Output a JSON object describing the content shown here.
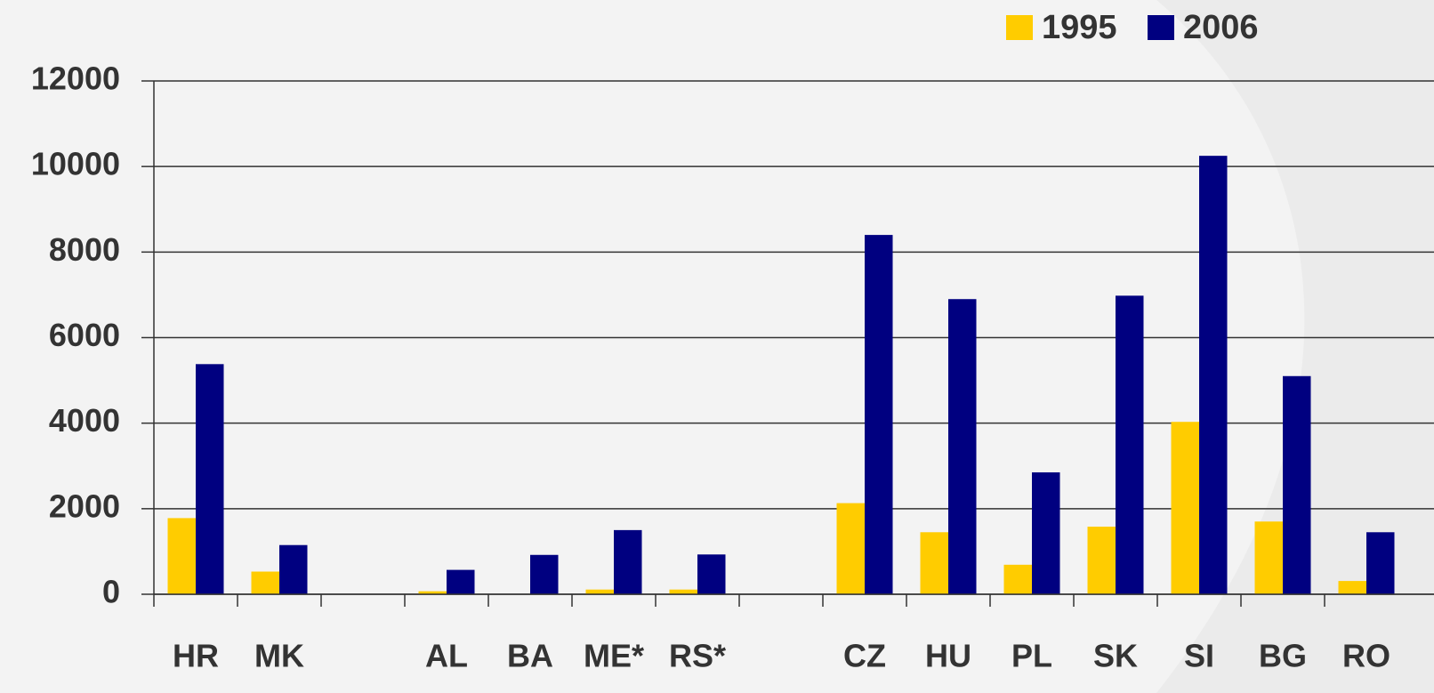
{
  "chart_data": {
    "type": "bar",
    "categories": [
      "HR",
      "MK",
      null,
      "AL",
      "BA",
      "ME*",
      "RS*",
      null,
      "CZ",
      "HU",
      "PL",
      "SK",
      "SI",
      "BG",
      "RO"
    ],
    "series": [
      {
        "name": "1995",
        "color": "#ffcc00",
        "values": [
          1780,
          530,
          null,
          70,
          0,
          110,
          110,
          null,
          2130,
          1450,
          690,
          1580,
          4030,
          1700,
          310
        ]
      },
      {
        "name": "2006",
        "color": "#000080",
        "values": [
          5380,
          1150,
          null,
          570,
          920,
          1500,
          930,
          null,
          8400,
          6900,
          2850,
          6980,
          10250,
          5100,
          1450
        ]
      }
    ],
    "ylim": [
      0,
      12000
    ],
    "yticks": [
      0,
      2000,
      4000,
      6000,
      8000,
      10000,
      12000
    ],
    "grid": true
  }
}
